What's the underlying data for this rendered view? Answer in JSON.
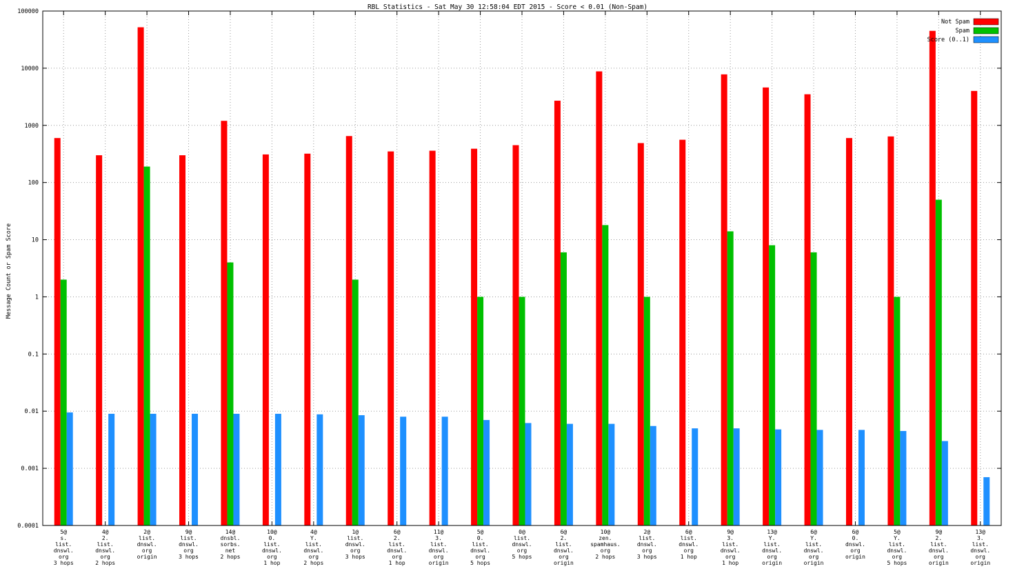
{
  "title": "RBL Statistics - Sat May 30 12:58:04 EDT 2015 - Score < 0.01 (Non-Spam)",
  "chart_data": {
    "type": "bar",
    "yscale": "log",
    "ylabel": "Message Count or Spam Score",
    "ylim": [
      0.0001,
      100000
    ],
    "yticks": [
      100000,
      10000,
      1000,
      100,
      10,
      1,
      0.1,
      0.01,
      0.001,
      0.0001
    ],
    "ytick_labels": [
      "100000",
      "10000",
      "1000",
      "100",
      "10",
      "1",
      "0.1",
      "0.01",
      "0.001",
      "0.0001"
    ],
    "grid": true,
    "legend_position": "top-right",
    "categories": [
      [
        "5@",
        "s.",
        "list.",
        "dnswl.",
        "org",
        "3 hops"
      ],
      [
        "4@",
        "2.",
        "list.",
        "dnswl.",
        "org",
        "2 hops"
      ],
      [
        "2@",
        "list.",
        "dnswl.",
        "org",
        "origin"
      ],
      [
        "9@",
        "list.",
        "dnswl.",
        "org",
        "3 hops"
      ],
      [
        "14@",
        "dnsbl.",
        "sorbs.",
        "net",
        "2 hops"
      ],
      [
        "10@",
        "0.",
        "list.",
        "dnswl.",
        "org",
        "1 hop"
      ],
      [
        "4@",
        "Y.",
        "list.",
        "dnswl.",
        "org",
        "2 hops"
      ],
      [
        "1@",
        "list.",
        "dnswl.",
        "org",
        "3 hops"
      ],
      [
        "6@",
        "2.",
        "list.",
        "dnswl.",
        "org",
        "1 hop"
      ],
      [
        "11@",
        "3.",
        "list.",
        "dnswl.",
        "org",
        "origin"
      ],
      [
        "5@",
        "0.",
        "list.",
        "dnswl.",
        "org",
        "5 hops"
      ],
      [
        "0@",
        "list.",
        "dnswl.",
        "org",
        "5 hops"
      ],
      [
        "6@",
        "2.",
        "list.",
        "dnswl.",
        "org",
        "origin"
      ],
      [
        "10@",
        "zen.",
        "spamhaus.",
        "org",
        "2 hops"
      ],
      [
        "2@",
        "list.",
        "dnswl.",
        "org",
        "3 hops"
      ],
      [
        "6@",
        "list.",
        "dnswl.",
        "org",
        "1 hop"
      ],
      [
        "9@",
        "3.",
        "list.",
        "dnswl.",
        "org",
        "1 hop"
      ],
      [
        "13@",
        "Y.",
        "list.",
        "dnswl.",
        "org",
        "origin"
      ],
      [
        "6@",
        "Y.",
        "list.",
        "dnswl.",
        "org",
        "origin"
      ],
      [
        "6@",
        "0.",
        "dnswl.",
        "org",
        "origin"
      ],
      [
        "5@",
        "Y.",
        "list.",
        "dnswl.",
        "org",
        "5 hops"
      ],
      [
        "9@",
        "2.",
        "list.",
        "dnswl.",
        "org",
        "origin"
      ],
      [
        "13@",
        "3.",
        "list.",
        "dnswl.",
        "org",
        "origin"
      ]
    ],
    "series": [
      {
        "name": "Not Spam",
        "color": "#ff0000",
        "values": [
          600,
          300,
          52000,
          300,
          1200,
          310,
          320,
          650,
          350,
          360,
          390,
          450,
          2700,
          8800,
          490,
          560,
          7800,
          4600,
          3500,
          600,
          640,
          45000,
          4000
        ]
      },
      {
        "name": "Spam",
        "color": "#00c000",
        "values": [
          2,
          0,
          190,
          0,
          4,
          0,
          0,
          2,
          0,
          0,
          1,
          1,
          6,
          18,
          1,
          0,
          14,
          8,
          6,
          0,
          1,
          50,
          0
        ]
      },
      {
        "name": "Score (0..1)",
        "color": "#1e90ff",
        "values": [
          0.0095,
          0.009,
          0.009,
          0.009,
          0.009,
          0.009,
          0.0088,
          0.0085,
          0.008,
          0.008,
          0.007,
          0.0062,
          0.006,
          0.006,
          0.0055,
          0.005,
          0.005,
          0.0048,
          0.0047,
          0.0047,
          0.0045,
          0.003,
          0.0007
        ]
      }
    ]
  }
}
